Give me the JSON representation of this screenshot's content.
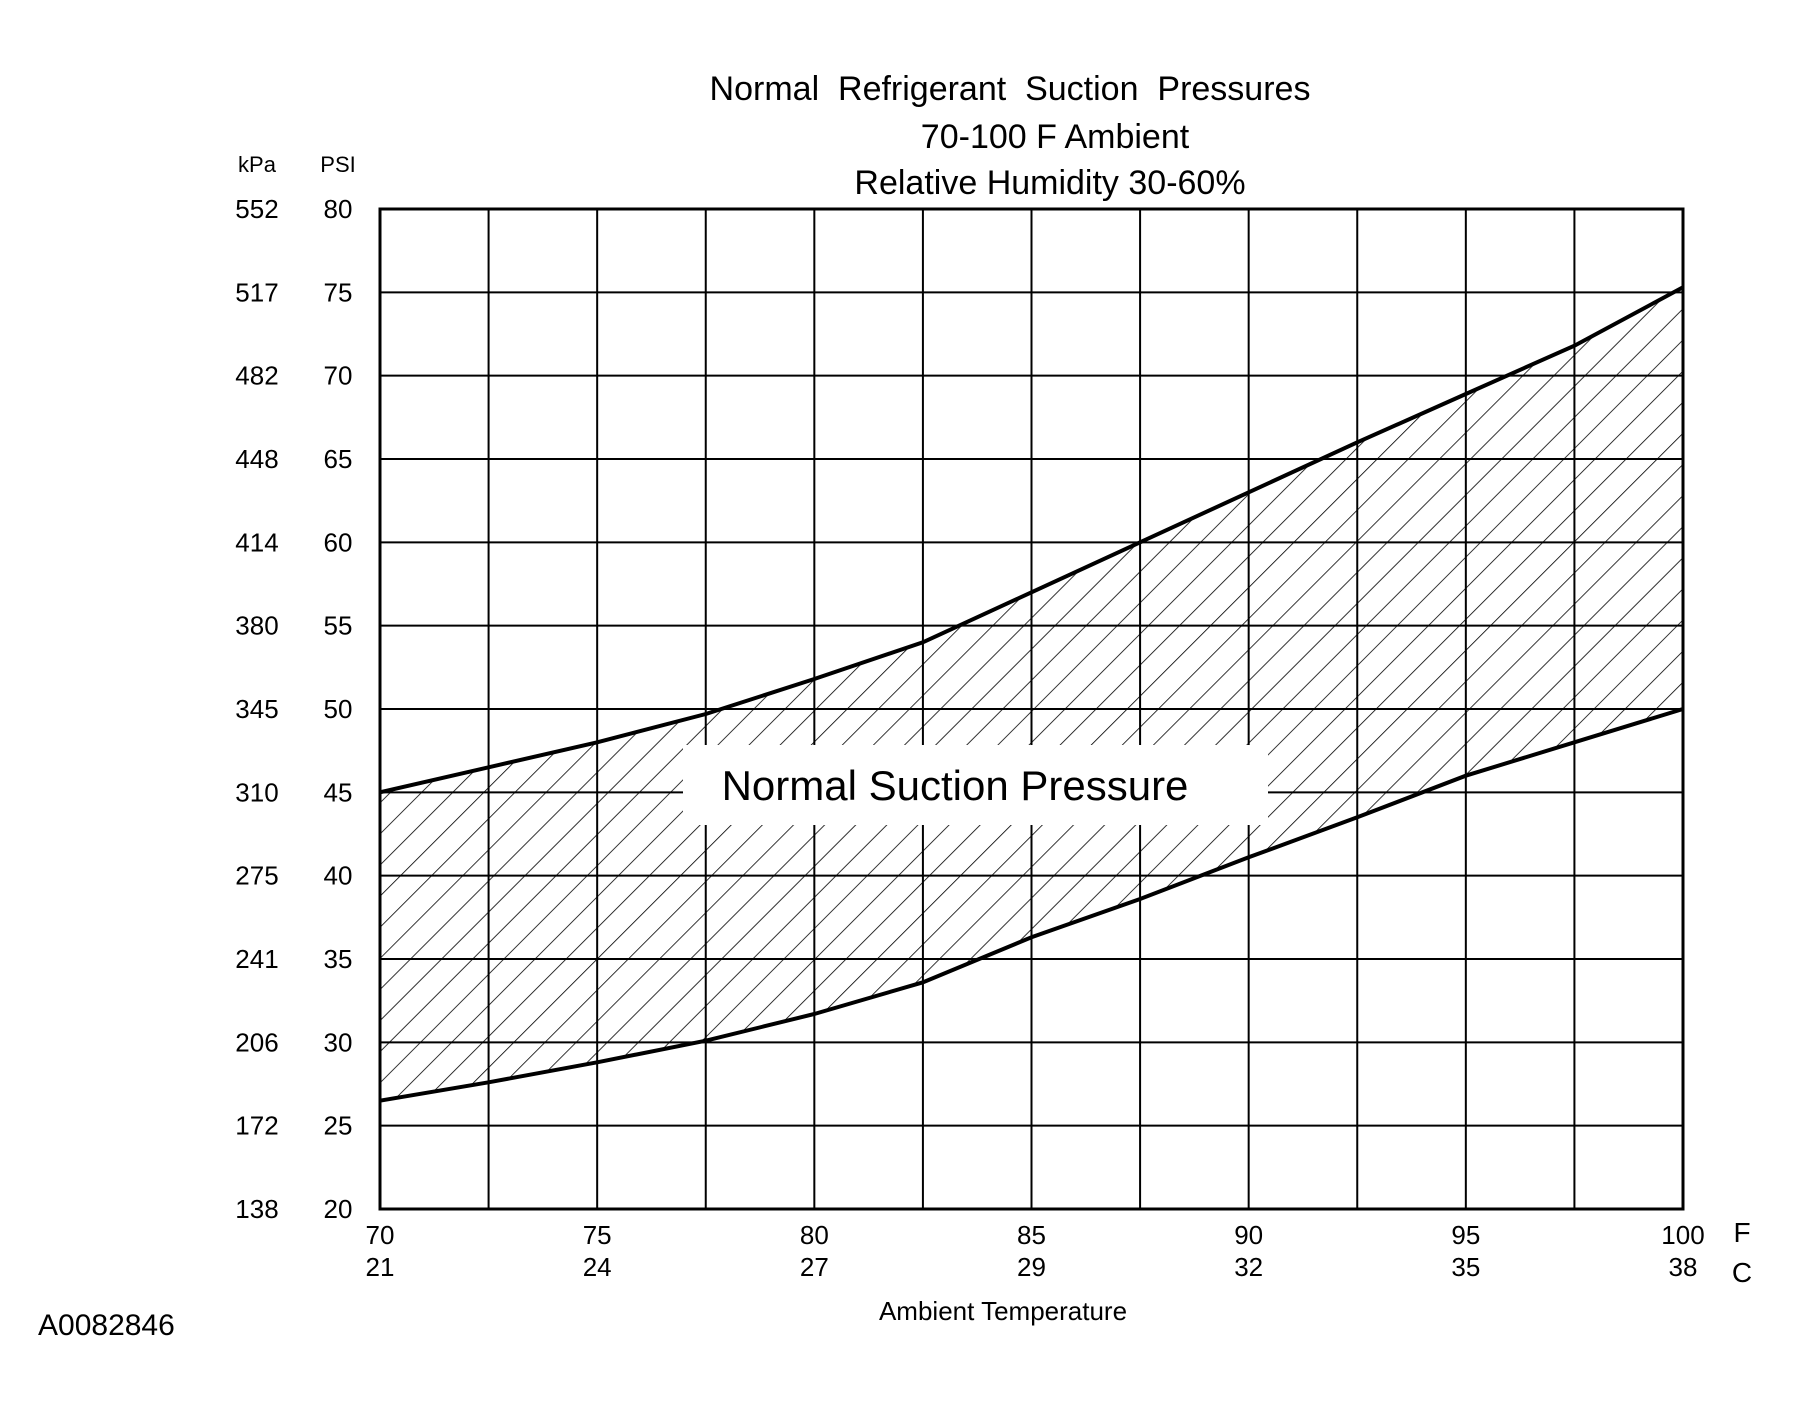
{
  "chart_data": {
    "type": "area",
    "title": "Normal  Refrigerant  Suction  Pressures",
    "subtitle_lines": [
      "70-100 F Ambient",
      "Relative Humidity 30-60%"
    ],
    "xlabel": "Ambient Temperature",
    "x_unit_labels": {
      "primary": "F",
      "secondary": "C"
    },
    "y_unit_labels": {
      "kpa": "kPa",
      "psi": "PSI"
    },
    "xlim": [
      70,
      100
    ],
    "ylim": [
      20,
      80
    ],
    "x_ticks": [
      {
        "f": 70,
        "label_f": "70",
        "label_c": "21"
      },
      {
        "f": 75,
        "label_f": "75",
        "label_c": "24"
      },
      {
        "f": 80,
        "label_f": "80",
        "label_c": "27"
      },
      {
        "f": 85,
        "label_f": "85",
        "label_c": "29"
      },
      {
        "f": 90,
        "label_f": "90",
        "label_c": "32"
      },
      {
        "f": 95,
        "label_f": "95",
        "label_c": "35"
      },
      {
        "f": 100,
        "label_f": "100",
        "label_c": "38"
      }
    ],
    "x_minor_grid": [
      72.5,
      77.5,
      82.5,
      87.5,
      92.5,
      97.5
    ],
    "y_ticks": [
      {
        "psi": 80,
        "label_psi": "80",
        "label_kpa": "552"
      },
      {
        "psi": 75,
        "label_psi": "75",
        "label_kpa": "517"
      },
      {
        "psi": 70,
        "label_psi": "70",
        "label_kpa": "482"
      },
      {
        "psi": 65,
        "label_psi": "65",
        "label_kpa": "448"
      },
      {
        "psi": 60,
        "label_psi": "60",
        "label_kpa": "414"
      },
      {
        "psi": 55,
        "label_psi": "55",
        "label_kpa": "380"
      },
      {
        "psi": 50,
        "label_psi": "50",
        "label_kpa": "345"
      },
      {
        "psi": 45,
        "label_psi": "45",
        "label_kpa": "310"
      },
      {
        "psi": 40,
        "label_psi": "40",
        "label_kpa": "275"
      },
      {
        "psi": 35,
        "label_psi": "35",
        "label_kpa": "241"
      },
      {
        "psi": 30,
        "label_psi": "30",
        "label_kpa": "206"
      },
      {
        "psi": 25,
        "label_psi": "25",
        "label_kpa": "172"
      },
      {
        "psi": 20,
        "label_psi": "20",
        "label_kpa": "138"
      }
    ],
    "series": [
      {
        "name": "upper",
        "x": [
          70,
          72.5,
          75,
          77.5,
          80,
          82.5,
          85,
          87.5,
          90,
          92.5,
          95,
          97.5,
          100
        ],
        "y": [
          45,
          46.5,
          48,
          49.7,
          51.8,
          54,
          57,
          60,
          63,
          66,
          68.9,
          71.8,
          75.3
        ]
      },
      {
        "name": "lower",
        "x": [
          70,
          72.5,
          75,
          77.5,
          80,
          82.5,
          85,
          87.5,
          90,
          92.5,
          95,
          97.5,
          100
        ],
        "y": [
          26.5,
          27.6,
          28.8,
          30.1,
          31.7,
          33.6,
          36.3,
          38.6,
          41.1,
          43.5,
          46,
          48,
          50
        ]
      }
    ],
    "region_label": "Normal Suction Pressure",
    "grid": true
  },
  "figure_code": "A0082846"
}
